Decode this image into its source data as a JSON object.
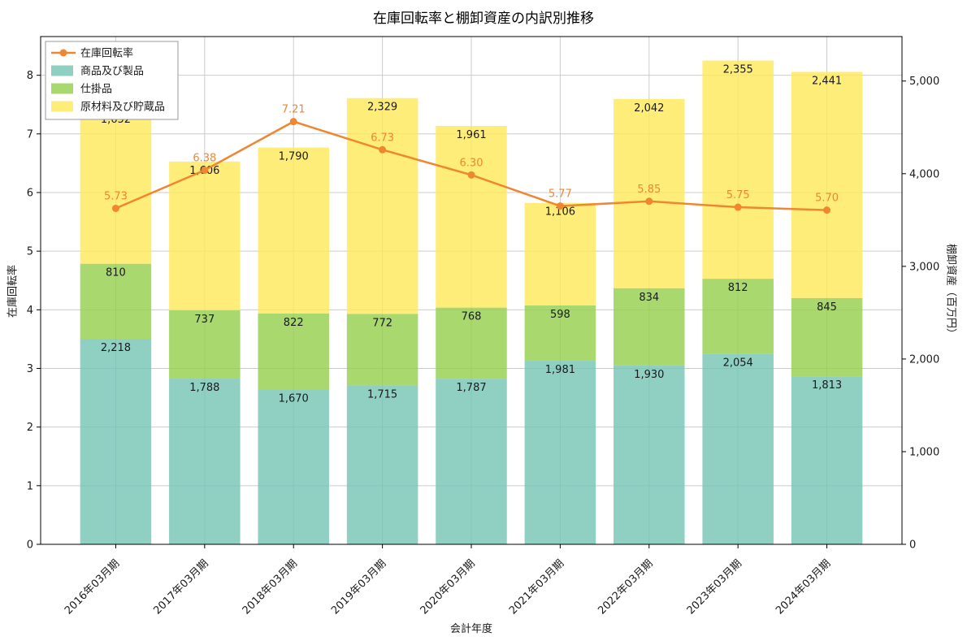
{
  "chart_data": {
    "type": "bar",
    "stacked": true,
    "title": "在庫回転率と棚卸資産の内訳別推移",
    "xlabel": "会計年度",
    "ylabel_left": "在庫回転率",
    "ylabel_right": "棚卸資産（百万円）",
    "categories": [
      "2016年03月期",
      "2017年03月期",
      "2018年03月期",
      "2019年03月期",
      "2020年03月期",
      "2021年03月期",
      "2022年03月期",
      "2023年03月期",
      "2024年03月期"
    ],
    "bar_series": [
      {
        "name": "商品及び製品",
        "color": "#73c4b4",
        "values": [
          2218,
          1788,
          1670,
          1715,
          1787,
          1981,
          1930,
          2054,
          1813
        ]
      },
      {
        "name": "仕掛品",
        "color": "#92ce4a",
        "values": [
          810,
          737,
          822,
          772,
          768,
          598,
          834,
          812,
          845
        ]
      },
      {
        "name": "原材料及び貯蔵品",
        "color": "#ffe859",
        "values": [
          1652,
          1606,
          1790,
          2329,
          1961,
          1106,
          2042,
          2355,
          2441
        ]
      }
    ],
    "line_series": {
      "name": "在庫回転率",
      "color": "#ef8632",
      "values": [
        5.73,
        6.38,
        7.21,
        6.73,
        6.3,
        5.77,
        5.85,
        5.75,
        5.7
      ]
    },
    "left_axis": {
      "min": 0,
      "max": 8.66,
      "ticks": [
        0,
        1,
        2,
        3,
        4,
        5,
        6,
        7,
        8
      ]
    },
    "right_axis": {
      "min": 0,
      "max": 5480,
      "ticks": [
        0,
        1000,
        2000,
        3000,
        4000,
        5000
      ]
    },
    "legend_position": "top-left",
    "grid": true
  }
}
